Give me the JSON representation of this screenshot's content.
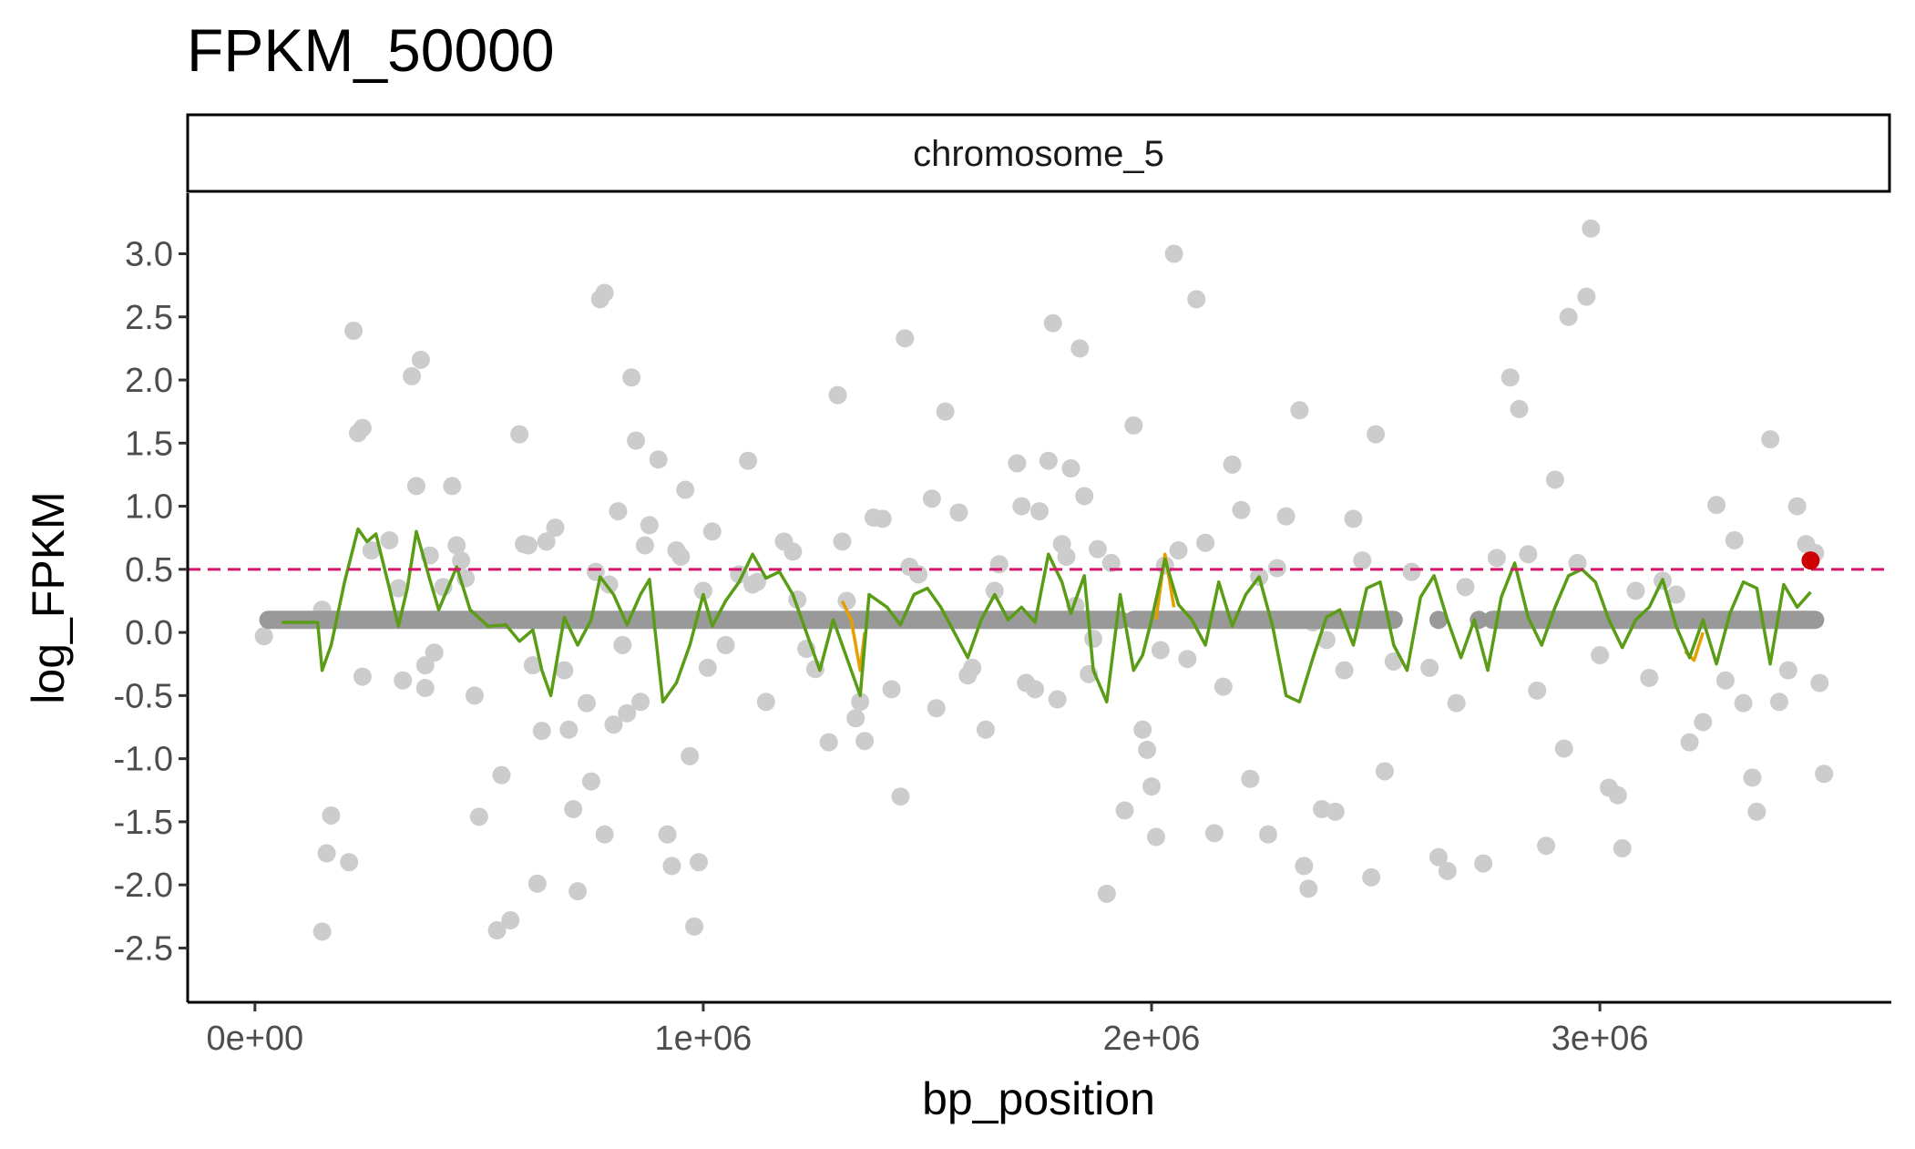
{
  "chart_data": {
    "type": "scatter",
    "title": "FPKM_50000",
    "facet_label": "chromosome_5",
    "xlabel": "bp_position",
    "ylabel": "log_FPKM",
    "xlim": [
      -150000,
      3650000
    ],
    "ylim": [
      -2.93,
      3.48
    ],
    "x_ticks": [
      0,
      1000000,
      2000000,
      3000000
    ],
    "x_tick_labels": [
      "0e+00",
      "1e+06",
      "2e+06",
      "3e+06"
    ],
    "y_ticks": [
      3.0,
      2.5,
      2.0,
      1.5,
      1.0,
      0.5,
      0.0,
      -0.5,
      -1.0,
      -1.5,
      -2.0,
      -2.5
    ],
    "y_tick_labels": [
      "3.0",
      "2.5",
      "2.0",
      "1.5",
      "1.0",
      "0.5",
      "0.0",
      "-0.5",
      "-1.0",
      "-1.5",
      "-2.0",
      "-2.5"
    ],
    "grid": false,
    "threshold": {
      "y": 0.5,
      "style": "dashed",
      "color": "#d6146e"
    },
    "colors": {
      "points": "#cccccc",
      "baseline_points": "#999999",
      "smooth_line": "#5a9c16",
      "smooth_line_highlight": "#e69f00",
      "highlight_point": "#cc0000"
    },
    "baseline_y": 0.1,
    "baseline_segments": [
      [
        30000,
        1300000
      ],
      [
        1310000,
        1930000
      ],
      [
        1960000,
        2540000
      ],
      [
        2760000,
        2900000
      ],
      [
        2900000,
        3480000
      ]
    ],
    "baseline_points": [
      2640000,
      2730000
    ],
    "highlight_point": {
      "x": 3470000,
      "y": 0.57
    },
    "points": [
      [
        20000,
        -0.03
      ],
      [
        150000,
        0.18
      ],
      [
        160000,
        -1.75
      ],
      [
        170000,
        -1.45
      ],
      [
        150000,
        -2.37
      ],
      [
        210000,
        -1.82
      ],
      [
        220000,
        2.39
      ],
      [
        230000,
        1.58
      ],
      [
        240000,
        1.62
      ],
      [
        240000,
        -0.35
      ],
      [
        260000,
        0.65
      ],
      [
        300000,
        0.73
      ],
      [
        320000,
        0.35
      ],
      [
        330000,
        -0.38
      ],
      [
        350000,
        2.03
      ],
      [
        360000,
        1.16
      ],
      [
        370000,
        2.16
      ],
      [
        380000,
        -0.26
      ],
      [
        380000,
        -0.44
      ],
      [
        390000,
        0.61
      ],
      [
        400000,
        -0.16
      ],
      [
        420000,
        0.36
      ],
      [
        440000,
        1.16
      ],
      [
        450000,
        0.69
      ],
      [
        460000,
        0.57
      ],
      [
        470000,
        0.43
      ],
      [
        490000,
        -0.5
      ],
      [
        500000,
        -1.46
      ],
      [
        540000,
        -2.36
      ],
      [
        550000,
        -1.13
      ],
      [
        570000,
        -2.28
      ],
      [
        590000,
        1.57
      ],
      [
        600000,
        0.7
      ],
      [
        610000,
        0.69
      ],
      [
        620000,
        -0.26
      ],
      [
        630000,
        -1.99
      ],
      [
        640000,
        -0.78
      ],
      [
        650000,
        0.72
      ],
      [
        670000,
        0.83
      ],
      [
        690000,
        -0.3
      ],
      [
        700000,
        -0.77
      ],
      [
        710000,
        -1.4
      ],
      [
        720000,
        -2.05
      ],
      [
        740000,
        -0.56
      ],
      [
        750000,
        -1.18
      ],
      [
        760000,
        0.48
      ],
      [
        770000,
        2.64
      ],
      [
        780000,
        2.69
      ],
      [
        780000,
        -1.6
      ],
      [
        790000,
        0.38
      ],
      [
        800000,
        -0.73
      ],
      [
        810000,
        0.96
      ],
      [
        820000,
        -0.1
      ],
      [
        830000,
        -0.64
      ],
      [
        840000,
        2.02
      ],
      [
        850000,
        1.52
      ],
      [
        860000,
        -0.55
      ],
      [
        870000,
        0.69
      ],
      [
        880000,
        0.85
      ],
      [
        900000,
        1.37
      ],
      [
        920000,
        -1.6
      ],
      [
        930000,
        -1.85
      ],
      [
        940000,
        0.65
      ],
      [
        950000,
        0.6
      ],
      [
        960000,
        1.13
      ],
      [
        970000,
        -0.98
      ],
      [
        980000,
        -2.33
      ],
      [
        990000,
        -1.82
      ],
      [
        1000000,
        0.33
      ],
      [
        1010000,
        -0.28
      ],
      [
        1020000,
        0.8
      ],
      [
        1050000,
        -0.1
      ],
      [
        1080000,
        0.46
      ],
      [
        1100000,
        1.36
      ],
      [
        1110000,
        0.38
      ],
      [
        1120000,
        0.4
      ],
      [
        1140000,
        -0.55
      ],
      [
        1180000,
        0.72
      ],
      [
        1200000,
        0.64
      ],
      [
        1210000,
        0.26
      ],
      [
        1230000,
        -0.13
      ],
      [
        1250000,
        -0.29
      ],
      [
        1280000,
        -0.87
      ],
      [
        1300000,
        1.88
      ],
      [
        1310000,
        0.72
      ],
      [
        1320000,
        0.25
      ],
      [
        1340000,
        -0.68
      ],
      [
        1350000,
        -0.55
      ],
      [
        1360000,
        -0.86
      ],
      [
        1380000,
        0.91
      ],
      [
        1400000,
        0.9
      ],
      [
        1420000,
        -0.45
      ],
      [
        1440000,
        -1.3
      ],
      [
        1450000,
        2.33
      ],
      [
        1460000,
        0.52
      ],
      [
        1480000,
        0.46
      ],
      [
        1510000,
        1.06
      ],
      [
        1520000,
        -0.6
      ],
      [
        1540000,
        1.75
      ],
      [
        1570000,
        0.95
      ],
      [
        1590000,
        -0.34
      ],
      [
        1600000,
        -0.28
      ],
      [
        1630000,
        -0.77
      ],
      [
        1650000,
        0.33
      ],
      [
        1660000,
        0.54
      ],
      [
        1700000,
        1.34
      ],
      [
        1710000,
        1.0
      ],
      [
        1720000,
        -0.4
      ],
      [
        1740000,
        -0.45
      ],
      [
        1750000,
        0.96
      ],
      [
        1770000,
        1.36
      ],
      [
        1780000,
        2.45
      ],
      [
        1790000,
        -0.53
      ],
      [
        1800000,
        0.7
      ],
      [
        1810000,
        0.6
      ],
      [
        1820000,
        1.3
      ],
      [
        1830000,
        0.21
      ],
      [
        1840000,
        2.25
      ],
      [
        1850000,
        1.08
      ],
      [
        1860000,
        -0.33
      ],
      [
        1870000,
        -0.05
      ],
      [
        1880000,
        0.66
      ],
      [
        1900000,
        -2.07
      ],
      [
        1910000,
        0.55
      ],
      [
        1940000,
        -1.41
      ],
      [
        1960000,
        1.64
      ],
      [
        1980000,
        -0.77
      ],
      [
        1990000,
        -0.93
      ],
      [
        2000000,
        -1.22
      ],
      [
        2010000,
        -1.62
      ],
      [
        2020000,
        -0.14
      ],
      [
        2030000,
        0.53
      ],
      [
        2050000,
        3.0
      ],
      [
        2060000,
        0.65
      ],
      [
        2080000,
        -0.21
      ],
      [
        2100000,
        2.64
      ],
      [
        2120000,
        0.71
      ],
      [
        2140000,
        -1.59
      ],
      [
        2160000,
        -0.43
      ],
      [
        2180000,
        1.33
      ],
      [
        2200000,
        0.97
      ],
      [
        2220000,
        -1.16
      ],
      [
        2240000,
        0.44
      ],
      [
        2260000,
        -1.6
      ],
      [
        2280000,
        0.51
      ],
      [
        2300000,
        0.92
      ],
      [
        2330000,
        1.76
      ],
      [
        2340000,
        -1.85
      ],
      [
        2350000,
        -2.03
      ],
      [
        2360000,
        0.08
      ],
      [
        2380000,
        -1.4
      ],
      [
        2390000,
        -0.06
      ],
      [
        2410000,
        -1.42
      ],
      [
        2430000,
        -0.3
      ],
      [
        2450000,
        0.9
      ],
      [
        2470000,
        0.57
      ],
      [
        2490000,
        -1.94
      ],
      [
        2500000,
        1.57
      ],
      [
        2520000,
        -1.1
      ],
      [
        2540000,
        -0.23
      ],
      [
        2580000,
        0.48
      ],
      [
        2620000,
        -0.28
      ],
      [
        2640000,
        -1.78
      ],
      [
        2660000,
        -1.89
      ],
      [
        2680000,
        -0.56
      ],
      [
        2700000,
        0.36
      ],
      [
        2740000,
        -1.83
      ],
      [
        2770000,
        0.59
      ],
      [
        2800000,
        2.02
      ],
      [
        2820000,
        1.77
      ],
      [
        2840000,
        0.62
      ],
      [
        2860000,
        -0.46
      ],
      [
        2880000,
        -1.69
      ],
      [
        2900000,
        1.21
      ],
      [
        2920000,
        -0.92
      ],
      [
        2930000,
        2.5
      ],
      [
        2950000,
        0.55
      ],
      [
        2970000,
        2.66
      ],
      [
        2980000,
        3.2
      ],
      [
        3000000,
        -0.18
      ],
      [
        3020000,
        -1.23
      ],
      [
        3040000,
        -1.29
      ],
      [
        3050000,
        -1.71
      ],
      [
        3080000,
        0.33
      ],
      [
        3110000,
        -0.36
      ],
      [
        3140000,
        0.41
      ],
      [
        3170000,
        0.3
      ],
      [
        3200000,
        -0.87
      ],
      [
        3230000,
        -0.71
      ],
      [
        3260000,
        1.01
      ],
      [
        3280000,
        -0.38
      ],
      [
        3300000,
        0.73
      ],
      [
        3320000,
        -0.56
      ],
      [
        3340000,
        -1.15
      ],
      [
        3350000,
        -1.42
      ],
      [
        3380000,
        1.53
      ],
      [
        3400000,
        -0.55
      ],
      [
        3420000,
        -0.3
      ],
      [
        3440000,
        1.0
      ],
      [
        3460000,
        0.7
      ],
      [
        3480000,
        0.63
      ],
      [
        3490000,
        -0.4
      ],
      [
        3500000,
        -1.12
      ]
    ],
    "smooth_line": [
      [
        60000,
        0.08
      ],
      [
        140000,
        0.08
      ],
      [
        150000,
        -0.3
      ],
      [
        170000,
        -0.1
      ],
      [
        200000,
        0.4
      ],
      [
        230000,
        0.82
      ],
      [
        250000,
        0.72
      ],
      [
        270000,
        0.78
      ],
      [
        300000,
        0.35
      ],
      [
        320000,
        0.05
      ],
      [
        340000,
        0.35
      ],
      [
        360000,
        0.8
      ],
      [
        390000,
        0.42
      ],
      [
        410000,
        0.18
      ],
      [
        450000,
        0.52
      ],
      [
        480000,
        0.18
      ],
      [
        520000,
        0.05
      ],
      [
        560000,
        0.06
      ],
      [
        590000,
        -0.07
      ],
      [
        620000,
        0.02
      ],
      [
        640000,
        -0.3
      ],
      [
        660000,
        -0.5
      ],
      [
        690000,
        0.12
      ],
      [
        720000,
        -0.1
      ],
      [
        750000,
        0.1
      ],
      [
        770000,
        0.44
      ],
      [
        800000,
        0.3
      ],
      [
        830000,
        0.06
      ],
      [
        860000,
        0.3
      ],
      [
        880000,
        0.42
      ],
      [
        910000,
        -0.55
      ],
      [
        940000,
        -0.4
      ],
      [
        970000,
        -0.1
      ],
      [
        1000000,
        0.3
      ],
      [
        1020000,
        0.05
      ],
      [
        1050000,
        0.25
      ],
      [
        1080000,
        0.4
      ],
      [
        1110000,
        0.62
      ],
      [
        1140000,
        0.43
      ],
      [
        1170000,
        0.48
      ],
      [
        1200000,
        0.3
      ],
      [
        1230000,
        0.0
      ],
      [
        1260000,
        -0.3
      ],
      [
        1290000,
        0.1
      ],
      [
        1320000,
        -0.2
      ],
      [
        1350000,
        -0.5
      ],
      [
        1370000,
        0.3
      ],
      [
        1410000,
        0.2
      ],
      [
        1440000,
        0.06
      ],
      [
        1470000,
        0.3
      ],
      [
        1500000,
        0.35
      ],
      [
        1530000,
        0.2
      ],
      [
        1560000,
        0.0
      ],
      [
        1590000,
        -0.2
      ],
      [
        1620000,
        0.1
      ],
      [
        1650000,
        0.3
      ],
      [
        1680000,
        0.1
      ],
      [
        1710000,
        0.2
      ],
      [
        1740000,
        0.08
      ],
      [
        1770000,
        0.62
      ],
      [
        1800000,
        0.4
      ],
      [
        1820000,
        0.15
      ],
      [
        1850000,
        0.45
      ],
      [
        1870000,
        -0.3
      ],
      [
        1900000,
        -0.55
      ],
      [
        1930000,
        0.3
      ],
      [
        1960000,
        -0.3
      ],
      [
        1980000,
        -0.18
      ],
      [
        2000000,
        0.1
      ],
      [
        2030000,
        0.58
      ],
      [
        2060000,
        0.22
      ],
      [
        2090000,
        0.1
      ],
      [
        2120000,
        -0.1
      ],
      [
        2150000,
        0.4
      ],
      [
        2180000,
        0.05
      ],
      [
        2210000,
        0.3
      ],
      [
        2240000,
        0.44
      ],
      [
        2270000,
        0.05
      ],
      [
        2300000,
        -0.5
      ],
      [
        2330000,
        -0.55
      ],
      [
        2360000,
        -0.2
      ],
      [
        2390000,
        0.12
      ],
      [
        2420000,
        0.18
      ],
      [
        2450000,
        -0.1
      ],
      [
        2480000,
        0.35
      ],
      [
        2510000,
        0.4
      ],
      [
        2540000,
        -0.1
      ],
      [
        2570000,
        -0.3
      ],
      [
        2600000,
        0.28
      ],
      [
        2630000,
        0.45
      ],
      [
        2660000,
        0.1
      ],
      [
        2690000,
        -0.2
      ],
      [
        2720000,
        0.1
      ],
      [
        2750000,
        -0.3
      ],
      [
        2780000,
        0.28
      ],
      [
        2810000,
        0.55
      ],
      [
        2840000,
        0.12
      ],
      [
        2870000,
        -0.1
      ],
      [
        2900000,
        0.2
      ],
      [
        2930000,
        0.45
      ],
      [
        2960000,
        0.5
      ],
      [
        2990000,
        0.4
      ],
      [
        3020000,
        0.1
      ],
      [
        3050000,
        -0.12
      ],
      [
        3080000,
        0.1
      ],
      [
        3110000,
        0.2
      ],
      [
        3140000,
        0.42
      ],
      [
        3170000,
        0.05
      ],
      [
        3200000,
        -0.2
      ],
      [
        3230000,
        0.1
      ],
      [
        3260000,
        -0.25
      ],
      [
        3290000,
        0.15
      ],
      [
        3320000,
        0.4
      ],
      [
        3350000,
        0.35
      ],
      [
        3380000,
        -0.25
      ],
      [
        3410000,
        0.38
      ],
      [
        3440000,
        0.2
      ],
      [
        3470000,
        0.32
      ]
    ],
    "smooth_line_highlight": [
      [
        [
          1310000,
          0.25
        ],
        [
          1330000,
          0.1
        ],
        [
          1350000,
          -0.3
        ],
        [
          1360000,
          0.0
        ]
      ],
      [
        [
          2010000,
          0.1
        ],
        [
          2030000,
          0.62
        ],
        [
          2050000,
          0.2
        ]
      ],
      [
        [
          3190000,
          -0.15
        ],
        [
          3210000,
          -0.22
        ],
        [
          3230000,
          0.0
        ]
      ]
    ]
  }
}
